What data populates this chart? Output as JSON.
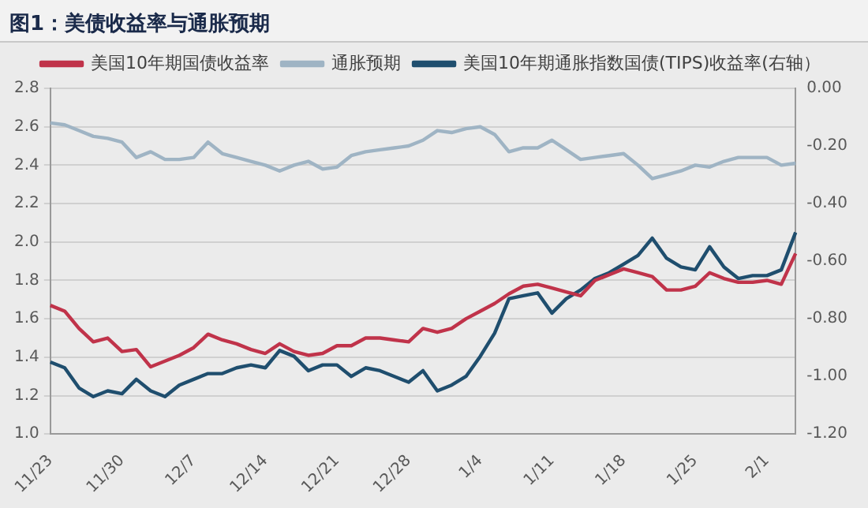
{
  "chart_data": {
    "type": "line",
    "title": "图1：美债收益率与通胀预期",
    "categories": [
      "11/23",
      null,
      null,
      null,
      null,
      "11/30",
      null,
      null,
      null,
      null,
      "12/7",
      null,
      null,
      null,
      null,
      "12/14",
      null,
      null,
      null,
      null,
      "12/21",
      null,
      null,
      null,
      null,
      "12/28",
      null,
      null,
      null,
      null,
      "1/4",
      null,
      null,
      null,
      null,
      "1/11",
      null,
      null,
      null,
      null,
      "1/18",
      null,
      null,
      null,
      null,
      "1/25",
      null,
      null,
      null,
      null,
      "2/1",
      null,
      null
    ],
    "series": [
      {
        "name": "美国10年期国债收益率",
        "color": "#c0334a",
        "values": [
          1.67,
          1.64,
          1.55,
          1.48,
          1.5,
          1.43,
          1.44,
          1.35,
          1.38,
          1.41,
          1.45,
          1.52,
          1.49,
          1.47,
          1.44,
          1.42,
          1.47,
          1.43,
          1.41,
          1.42,
          1.46,
          1.46,
          1.5,
          1.5,
          1.49,
          1.48,
          1.55,
          1.53,
          1.55,
          1.6,
          1.64,
          1.68,
          1.73,
          1.77,
          1.78,
          1.76,
          1.74,
          1.72,
          1.8,
          1.83,
          1.86,
          1.84,
          1.82,
          1.75,
          1.75,
          1.77,
          1.84,
          1.81,
          1.79,
          1.79,
          1.8,
          1.78,
          1.94
        ]
      },
      {
        "name": "通胀预期",
        "color": "#9fb4c4",
        "values": [
          2.62,
          2.61,
          2.58,
          2.55,
          2.54,
          2.52,
          2.44,
          2.47,
          2.43,
          2.43,
          2.44,
          2.52,
          2.46,
          2.44,
          2.42,
          2.4,
          2.37,
          2.4,
          2.42,
          2.38,
          2.39,
          2.45,
          2.47,
          2.48,
          2.49,
          2.5,
          2.53,
          2.58,
          2.57,
          2.59,
          2.6,
          2.56,
          2.47,
          2.49,
          2.49,
          2.53,
          2.48,
          2.43,
          2.44,
          2.45,
          2.46,
          2.4,
          2.33,
          2.35,
          2.37,
          2.4,
          2.39,
          2.42,
          2.44,
          2.44,
          2.44,
          2.4,
          2.41
        ]
      },
      {
        "name": "美国10年期通胀指数国债(TIPS)收益率(右轴）",
        "color": "#1f4e6e",
        "axis": "y2",
        "values": [
          -0.95,
          -0.97,
          -1.04,
          -1.07,
          -1.05,
          -1.06,
          -1.01,
          -1.05,
          -1.07,
          -1.03,
          -1.01,
          -0.99,
          -0.99,
          -0.97,
          -0.96,
          -0.97,
          -0.91,
          -0.93,
          -0.98,
          -0.96,
          -0.96,
          -1.0,
          -0.97,
          -0.98,
          -1.0,
          -1.02,
          -0.98,
          -1.05,
          -1.03,
          -1.0,
          -0.93,
          -0.85,
          -0.73,
          -0.72,
          -0.71,
          -0.78,
          -0.73,
          -0.7,
          -0.66,
          -0.64,
          -0.61,
          -0.58,
          -0.52,
          -0.59,
          -0.62,
          -0.63,
          -0.55,
          -0.62,
          -0.66,
          -0.65,
          -0.65,
          -0.63,
          -0.5
        ]
      }
    ],
    "ylim": [
      1.0,
      2.8
    ],
    "yticks": [
      {
        "value": 1.0,
        "label": "1.0"
      },
      1.2,
      1.4,
      1.6,
      1.8,
      {
        "value": 2.0,
        "label": "2.0"
      },
      2.2,
      2.4,
      2.6,
      2.8
    ],
    "y2lim": [
      -1.2,
      0
    ],
    "y2ticks": [
      {
        "value": -1.2,
        "label": "-1.20"
      },
      {
        "value": -1.0,
        "label": "-1.00"
      },
      {
        "value": -0.8,
        "label": "-0.80"
      },
      {
        "value": -0.6,
        "label": "-0.60"
      },
      {
        "value": -0.4,
        "label": "-0.40"
      },
      {
        "value": -0.2,
        "label": "-0.20"
      },
      {
        "value": 0,
        "label": "0.00"
      }
    ],
    "grid": "y",
    "legend": "top",
    "marker": "none",
    "line_style": "solid"
  }
}
